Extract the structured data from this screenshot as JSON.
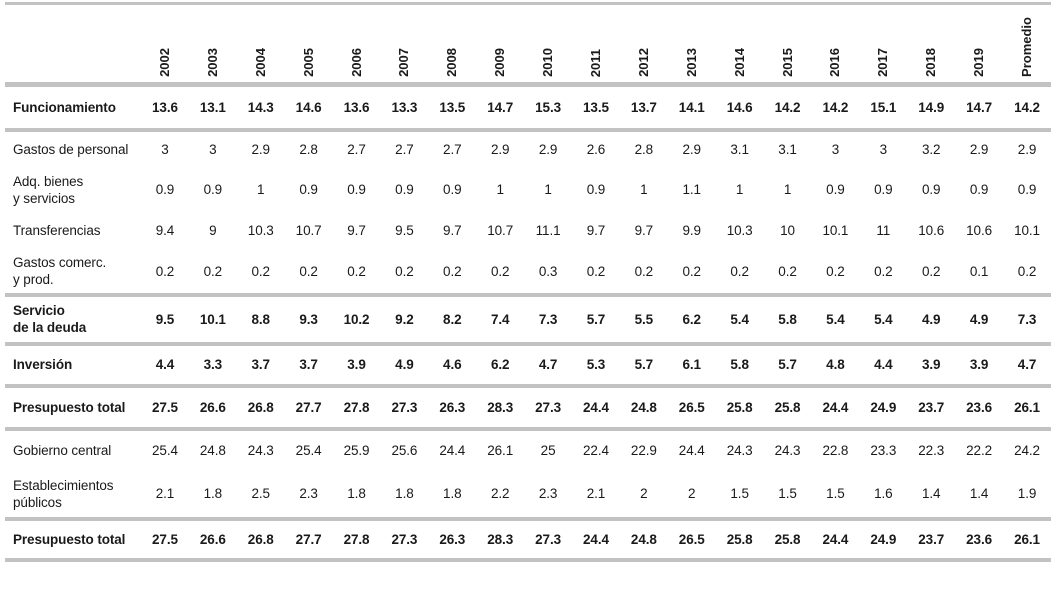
{
  "table": {
    "corner_label": "",
    "columns": [
      "2002",
      "2003",
      "2004",
      "2005",
      "2006",
      "2007",
      "2008",
      "2009",
      "2010",
      "2011",
      "2012",
      "2013",
      "2014",
      "2015",
      "2016",
      "2017",
      "2018",
      "2019",
      "Promedio"
    ],
    "rows": [
      {
        "label": "Funcionamiento",
        "bold": true,
        "values": [
          "13.6",
          "13.1",
          "14.3",
          "14.6",
          "13.6",
          "13.3",
          "13.5",
          "14.7",
          "15.3",
          "13.5",
          "13.7",
          "14.1",
          "14.6",
          "14.2",
          "14.2",
          "15.1",
          "14.9",
          "14.7",
          "14.2"
        ]
      },
      {
        "label": "Gastos de personal",
        "bold": false,
        "values": [
          "3",
          "3",
          "2.9",
          "2.8",
          "2.7",
          "2.7",
          "2.7",
          "2.9",
          "2.9",
          "2.6",
          "2.8",
          "2.9",
          "3.1",
          "3.1",
          "3",
          "3",
          "3.2",
          "2.9",
          "2.9"
        ]
      },
      {
        "label": "Adq. bienes\ny servicios",
        "bold": false,
        "values": [
          "0.9",
          "0.9",
          "1",
          "0.9",
          "0.9",
          "0.9",
          "0.9",
          "1",
          "1",
          "0.9",
          "1",
          "1.1",
          "1",
          "1",
          "0.9",
          "0.9",
          "0.9",
          "0.9",
          "0.9"
        ]
      },
      {
        "label": "Transferencias",
        "bold": false,
        "values": [
          "9.4",
          "9",
          "10.3",
          "10.7",
          "9.7",
          "9.5",
          "9.7",
          "10.7",
          "11.1",
          "9.7",
          "9.7",
          "9.9",
          "10.3",
          "10",
          "10.1",
          "11",
          "10.6",
          "10.6",
          "10.1"
        ]
      },
      {
        "label": "Gastos comerc.\ny prod.",
        "bold": false,
        "values": [
          "0.2",
          "0.2",
          "0.2",
          "0.2",
          "0.2",
          "0.2",
          "0.2",
          "0.2",
          "0.3",
          "0.2",
          "0.2",
          "0.2",
          "0.2",
          "0.2",
          "0.2",
          "0.2",
          "0.2",
          "0.1",
          "0.2"
        ]
      },
      {
        "label": "Servicio\nde la deuda",
        "bold": true,
        "values": [
          "9.5",
          "10.1",
          "8.8",
          "9.3",
          "10.2",
          "9.2",
          "8.2",
          "7.4",
          "7.3",
          "5.7",
          "5.5",
          "6.2",
          "5.4",
          "5.8",
          "5.4",
          "5.4",
          "4.9",
          "4.9",
          "7.3"
        ]
      },
      {
        "label": "Inversión",
        "bold": true,
        "values": [
          "4.4",
          "3.3",
          "3.7",
          "3.7",
          "3.9",
          "4.9",
          "4.6",
          "6.2",
          "4.7",
          "5.3",
          "5.7",
          "6.1",
          "5.8",
          "5.7",
          "4.8",
          "4.4",
          "3.9",
          "3.9",
          "4.7"
        ]
      },
      {
        "label": "Presupuesto total",
        "bold": true,
        "values": [
          "27.5",
          "26.6",
          "26.8",
          "27.7",
          "27.8",
          "27.3",
          "26.3",
          "28.3",
          "27.3",
          "24.4",
          "24.8",
          "26.5",
          "25.8",
          "25.8",
          "24.4",
          "24.9",
          "23.7",
          "23.6",
          "26.1"
        ]
      },
      {
        "label": "Gobierno central",
        "bold": false,
        "values": [
          "25.4",
          "24.8",
          "24.3",
          "25.4",
          "25.9",
          "25.6",
          "24.4",
          "26.1",
          "25",
          "22.4",
          "22.9",
          "24.4",
          "24.3",
          "24.3",
          "22.8",
          "23.3",
          "22.3",
          "22.2",
          "24.2"
        ]
      },
      {
        "label": "Establecimientos\npúblicos",
        "bold": false,
        "values": [
          "2.1",
          "1.8",
          "2.5",
          "2.3",
          "1.8",
          "1.8",
          "1.8",
          "2.2",
          "2.3",
          "2.1",
          "2",
          "2",
          "1.5",
          "1.5",
          "1.5",
          "1.6",
          "1.4",
          "1.4",
          "1.9"
        ]
      },
      {
        "label": "Presupuesto total",
        "bold": true,
        "values": [
          "27.5",
          "26.6",
          "26.8",
          "27.7",
          "27.8",
          "27.3",
          "26.3",
          "28.3",
          "27.3",
          "24.4",
          "24.8",
          "26.5",
          "25.8",
          "25.8",
          "24.4",
          "24.9",
          "23.7",
          "23.6",
          "26.1"
        ]
      }
    ],
    "line_color": "#c0c2c4"
  }
}
